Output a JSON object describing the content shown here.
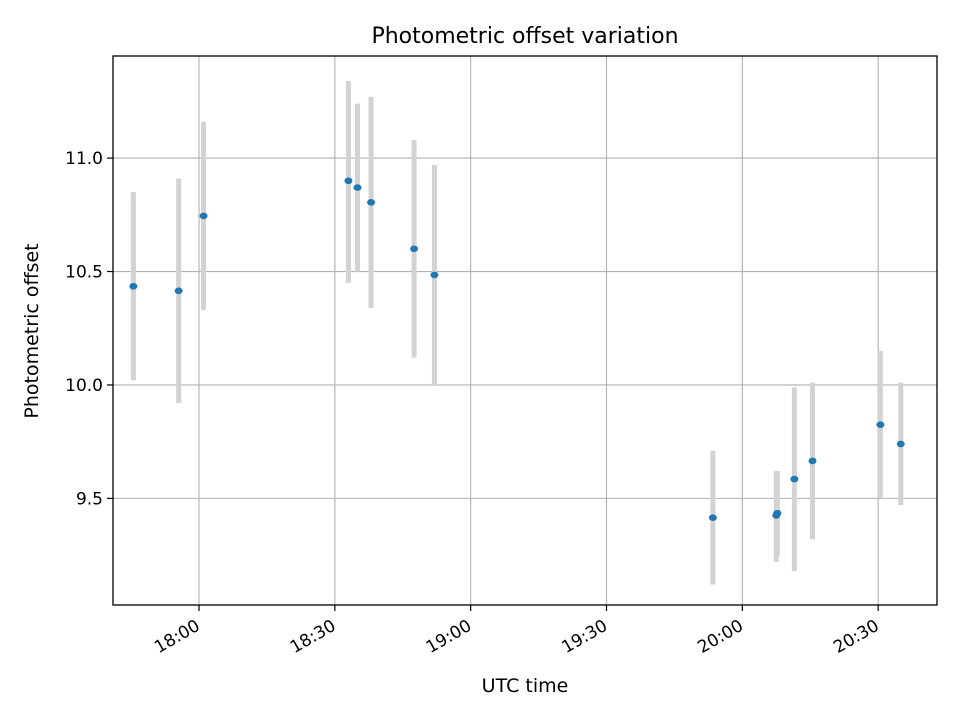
{
  "chart_data": {
    "type": "scatter",
    "title": "Photometric offset variation",
    "xlabel": "UTC time",
    "ylabel": "Photometric offset",
    "x_ticks": [
      "18:00",
      "18:30",
      "19:00",
      "19:30",
      "20:00",
      "20:30"
    ],
    "y_ticks": [
      "9.5",
      "10.0",
      "10.5",
      "11.0"
    ],
    "xlim": [
      "17:41",
      "20:43"
    ],
    "ylim": [
      9.03,
      11.45
    ],
    "grid": true,
    "points": [
      {
        "x": "17:45:30",
        "y": 10.435,
        "err_low": 10.02,
        "err_high": 10.85
      },
      {
        "x": "17:55:30",
        "y": 10.415,
        "err_low": 9.92,
        "err_high": 10.91
      },
      {
        "x": "18:01:00",
        "y": 10.745,
        "err_low": 10.33,
        "err_high": 11.16
      },
      {
        "x": "18:33:00",
        "y": 10.9,
        "err_low": 10.45,
        "err_high": 11.34
      },
      {
        "x": "18:35:00",
        "y": 10.87,
        "err_low": 10.5,
        "err_high": 11.24
      },
      {
        "x": "18:38:00",
        "y": 10.805,
        "err_low": 10.34,
        "err_high": 11.27
      },
      {
        "x": "18:47:30",
        "y": 10.6,
        "err_low": 10.12,
        "err_high": 11.08
      },
      {
        "x": "18:52:00",
        "y": 10.485,
        "err_low": 10.0,
        "err_high": 10.97
      },
      {
        "x": "19:53:30",
        "y": 9.415,
        "err_low": 9.12,
        "err_high": 9.71
      },
      {
        "x": "20:07:30",
        "y": 9.425,
        "err_low": 9.22,
        "err_high": 9.62
      },
      {
        "x": "20:07:45",
        "y": 9.435,
        "err_low": 9.25,
        "err_high": 9.62
      },
      {
        "x": "20:11:30",
        "y": 9.585,
        "err_low": 9.18,
        "err_high": 9.99
      },
      {
        "x": "20:15:30",
        "y": 9.665,
        "err_low": 9.32,
        "err_high": 10.01
      },
      {
        "x": "20:30:30",
        "y": 9.825,
        "err_low": 9.5,
        "err_high": 10.15
      },
      {
        "x": "20:35:00",
        "y": 9.74,
        "err_low": 9.47,
        "err_high": 10.01
      }
    ],
    "colors": {
      "point": "#1f77b4",
      "errorbar": "#d3d3d3",
      "grid": "#b0b0b0",
      "axes": "#000000"
    }
  }
}
